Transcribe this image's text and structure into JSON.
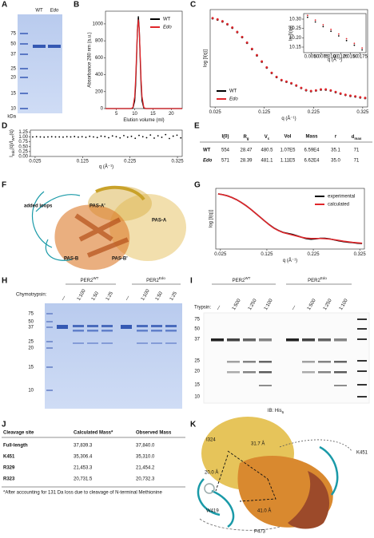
{
  "panel_labels": [
    "A",
    "B",
    "C",
    "D",
    "E",
    "F",
    "G",
    "H",
    "I",
    "J",
    "K"
  ],
  "gel_A": {
    "lanes": [
      "WT",
      "Edo"
    ],
    "markers": [
      75,
      50,
      37,
      25,
      20,
      15,
      10
    ],
    "unit": "kDa"
  },
  "chart_data": [
    {
      "type": "line",
      "ylabel": "Absorbance 280 nm (a.u.)",
      "xlabel": "Elution volume (ml)",
      "x": [
        2,
        4,
        6,
        8,
        9,
        9.5,
        10,
        10.25,
        10.5,
        10.75,
        11,
        11.25,
        11.5,
        11.75,
        12,
        12.5,
        13,
        14,
        16,
        18,
        20,
        22,
        23
      ],
      "series": [
        {
          "name": "WT",
          "color": "#000000",
          "values": [
            0,
            0,
            0,
            0,
            0,
            4,
            92,
            272,
            588,
            934,
            1090,
            934,
            588,
            272,
            92,
            4,
            0,
            0,
            0,
            0,
            0,
            0,
            0
          ]
        },
        {
          "name": "Edo",
          "color": "#e0262b",
          "values": [
            0,
            0,
            0,
            0,
            0,
            12,
            142,
            341,
            637,
            926,
            1050,
            926,
            637,
            341,
            142,
            12,
            0,
            0,
            0,
            0,
            0,
            0,
            0
          ]
        }
      ],
      "xlim": [
        2,
        23
      ],
      "ylim": [
        0,
        1150
      ],
      "xticks": [
        5,
        10,
        15,
        20
      ],
      "yticks": [
        0,
        200,
        400,
        600,
        800,
        1000
      ],
      "legend": "upper right"
    },
    {
      "type": "scatter",
      "ylabel": "log [I(q)]",
      "xlabel": "q (Å⁻¹)",
      "x": [
        0.02,
        0.03,
        0.04,
        0.05,
        0.06,
        0.07,
        0.08,
        0.09,
        0.1,
        0.11,
        0.12,
        0.13,
        0.14,
        0.15,
        0.16,
        0.17,
        0.18,
        0.19,
        0.2,
        0.21,
        0.22,
        0.23,
        0.24,
        0.25,
        0.26,
        0.27,
        0.28,
        0.29,
        0.3,
        0.31,
        0.32,
        0.33
      ],
      "series": [
        {
          "name": "WT",
          "color": "#000000",
          "values": [
            0.02,
            -0.02,
            -0.08,
            -0.17,
            -0.28,
            -0.42,
            -0.58,
            -0.76,
            -0.96,
            -1.16,
            -1.36,
            -1.55,
            -1.72,
            -1.85,
            -1.95,
            -2.0,
            -2.05,
            -2.12,
            -2.2,
            -2.27,
            -2.3,
            -2.28,
            -2.25,
            -2.25,
            -2.28,
            -2.33,
            -2.38,
            -2.42,
            -2.45,
            -2.47,
            -2.5,
            -2.52
          ]
        },
        {
          "name": "Edo",
          "color": "#e0262b",
          "values": [
            0.03,
            -0.01,
            -0.07,
            -0.16,
            -0.27,
            -0.41,
            -0.57,
            -0.75,
            -0.95,
            -1.15,
            -1.35,
            -1.54,
            -1.71,
            -1.84,
            -1.94,
            -1.99,
            -2.04,
            -2.11,
            -2.19,
            -2.26,
            -2.29,
            -2.27,
            -2.24,
            -2.24,
            -2.27,
            -2.32,
            -2.37,
            -2.41,
            -2.44,
            -2.46,
            -2.49,
            -2.51
          ]
        }
      ],
      "xlim": [
        0.015,
        0.335
      ],
      "ylim": [
        -2.8,
        0.3
      ],
      "xticks": [
        0.025,
        0.125,
        0.225,
        0.325
      ],
      "legend": "lower left"
    },
    {
      "type": "scatter",
      "ylabel": "ln [I(q)]",
      "xlabel": "q (Å⁻¹)",
      "x": [
        0.004,
        0.006,
        0.008,
        0.01,
        0.012,
        0.014,
        0.016,
        0.018
      ],
      "series": [
        {
          "color": "#000000",
          "values": [
            10.31,
            10.285,
            10.26,
            10.235,
            10.21,
            10.185,
            10.16,
            10.135
          ]
        },
        {
          "color": "#e0262b",
          "values": [
            10.32,
            10.295,
            10.27,
            10.245,
            10.22,
            10.195,
            10.17,
            10.145
          ]
        }
      ],
      "xlim": [
        0.003,
        0.019
      ],
      "ylim": [
        10.12,
        10.33
      ],
      "xticks": [
        {
          "value": 0.005,
          "label": "0.0050"
        },
        0.0075,
        {
          "value": 0.01,
          "label": "0.0100"
        },
        0.0125,
        {
          "value": 0.015,
          "label": "0.0150"
        },
        0.0175
      ],
      "yticks": [
        {
          "value": 10.3,
          "label": "10.30"
        },
        10.25,
        {
          "value": 10.2,
          "label": "10.20"
        },
        10.15
      ]
    },
    {
      "type": "scatter",
      "ylabel": [
        "I",
        "Edo",
        "(q)/I",
        "WT",
        "(q)"
      ],
      "xlabel": "q (Å⁻¹)",
      "x": [
        0.02,
        0.028,
        0.036,
        0.044,
        0.052,
        0.06,
        0.068,
        0.076,
        0.084,
        0.092,
        0.1,
        0.108,
        0.116,
        0.124,
        0.132,
        0.14,
        0.148,
        0.156,
        0.164,
        0.172,
        0.18,
        0.188,
        0.196,
        0.204,
        0.212,
        0.22,
        0.228,
        0.236,
        0.244,
        0.252,
        0.26,
        0.268,
        0.276,
        0.284,
        0.292,
        0.3,
        0.308,
        0.316,
        0.324,
        0.332
      ],
      "values": [
        1.0,
        1.01,
        1.0,
        0.99,
        1.0,
        1.01,
        1.0,
        1.0,
        0.99,
        1.01,
        1.0,
        1.02,
        0.99,
        1.01,
        0.98,
        1.03,
        1.0,
        0.97,
        1.04,
        1.02,
        0.96,
        1.05,
        1.01,
        0.95,
        1.07,
        0.99,
        1.03,
        0.93,
        1.08,
        1.01,
        0.96,
        1.1,
        0.94,
        1.06,
        0.98,
        1.12,
        0.92,
        1.04,
        1.09,
        0.95
      ],
      "color": "#000000",
      "xlim": [
        0.015,
        0.335
      ],
      "ylim": [
        0,
        1.35
      ],
      "xticks": [
        0.025,
        0.125,
        0.225,
        0.325
      ],
      "yticks": [
        {
          "value": 0,
          "label": "0.00"
        },
        0.25,
        {
          "value": 0.5,
          "label": "0.50"
        },
        0.75,
        {
          "value": 1,
          "label": "1.00"
        },
        1.25
      ]
    },
    {
      "type": "line",
      "ylabel": "log [I(q)]",
      "xlabel": "q (Å⁻¹)",
      "x": [
        0.02,
        0.03,
        0.04,
        0.05,
        0.06,
        0.07,
        0.08,
        0.09,
        0.1,
        0.11,
        0.12,
        0.13,
        0.14,
        0.15,
        0.16,
        0.17,
        0.18,
        0.19,
        0.2,
        0.21,
        0.22,
        0.23,
        0.24,
        0.25,
        0.26,
        0.27,
        0.28,
        0.29,
        0.3,
        0.31,
        0.32,
        0.33
      ],
      "series": [
        {
          "name": "experimental",
          "color": "#000000",
          "values": [
            0.02,
            -0.02,
            -0.08,
            -0.17,
            -0.28,
            -0.42,
            -0.58,
            -0.76,
            -0.96,
            -1.16,
            -1.36,
            -1.55,
            -1.72,
            -1.85,
            -1.95,
            -2.0,
            -2.05,
            -2.12,
            -2.2,
            -2.27,
            -2.3,
            -2.28,
            -2.25,
            -2.25,
            -2.28,
            -2.33,
            -2.38,
            -2.42,
            -2.45,
            -2.47,
            -2.5,
            -2.52
          ]
        },
        {
          "name": "calculated",
          "color": "#e0262b",
          "values": [
            0.02,
            -0.02,
            -0.08,
            -0.17,
            -0.28,
            -0.42,
            -0.58,
            -0.76,
            -0.96,
            -1.16,
            -1.36,
            -1.56,
            -1.73,
            -1.86,
            -1.96,
            -2.02,
            -2.08,
            -2.14,
            -2.2,
            -2.24,
            -2.26,
            -2.26,
            -2.26,
            -2.27,
            -2.29,
            -2.32,
            -2.36,
            -2.4,
            -2.43,
            -2.46,
            -2.48,
            -2.5
          ]
        }
      ],
      "xlim": [
        0.015,
        0.335
      ],
      "ylim": [
        -2.8,
        0.3
      ],
      "xticks": [
        0.025,
        0.125,
        0.225,
        0.325
      ],
      "legend": "upper right"
    }
  ],
  "table_E": {
    "header": [
      "I(0)",
      {
        "base": "R",
        "sub": "g"
      },
      {
        "base": "V",
        "sub": "c"
      },
      "Vol",
      "Mass",
      "r",
      {
        "base": "d",
        "sub": "max"
      }
    ],
    "rows": [
      {
        "label": "WT",
        "cells": [
          "554",
          "28.47",
          "480.5",
          "1.07E5",
          "6.59E4",
          "35.1",
          "71"
        ]
      },
      {
        "label": "Edo",
        "cells": [
          "571",
          "28.39",
          "481.1",
          "1.11E5",
          "6.62E4",
          "35.0",
          "71"
        ]
      }
    ]
  },
  "structure_F": {
    "labels": [
      "added loops",
      "PAS-A'",
      "PAS-A",
      "PAS-B",
      "PAS-B'"
    ]
  },
  "gel_H": {
    "groups": [
      {
        "base": "PER2",
        "sup": "WT"
      },
      {
        "base": "PER2",
        "sup": "Edo"
      }
    ],
    "treatment": "Chymotrypsin:",
    "lanes": [
      "—",
      "1:100",
      "1:50",
      "1:25",
      "—",
      "1:100",
      "1:50",
      "1:25"
    ],
    "markers": [
      75,
      50,
      37,
      25,
      20,
      15,
      10
    ]
  },
  "gel_I": {
    "groups": [
      {
        "base": "PER2",
        "sup": "WT"
      },
      {
        "base": "PER2",
        "sup": "Edo"
      }
    ],
    "treatment": "Trypsin:",
    "lanes": [
      "—",
      "1:500",
      "1:250",
      "1:100",
      "—",
      "1:500",
      "1:250",
      "1:100"
    ],
    "markers": [
      75,
      50,
      37,
      25,
      20,
      15,
      10
    ],
    "blot": {
      "base": "IB: His",
      "sub": "6"
    }
  },
  "table_J": {
    "header": [
      "Cleavage site",
      "Calculated Mass*",
      "Observed Mass"
    ],
    "rows": [
      [
        "Full-length",
        "37,839.3",
        "37,840.0"
      ],
      [
        "K451",
        "35,306.4",
        "35,310.0"
      ],
      [
        "R329",
        "21,453.3",
        "21,454.2"
      ],
      [
        "R323",
        "20,731.5",
        "20,732.3"
      ]
    ],
    "footnote": "*After accounting for 131 Da loss due to cleavage of N-terminal Methionine"
  },
  "structure_K": {
    "labels": [
      "I324",
      "31.7 Å",
      "K451",
      "20.0 Å",
      "W419",
      "41.0 Å",
      "P473"
    ]
  }
}
